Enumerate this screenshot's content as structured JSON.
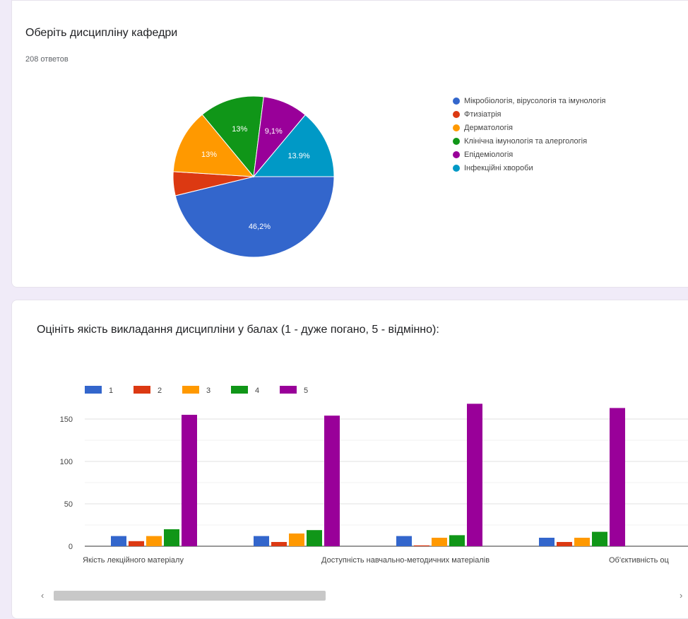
{
  "q1": {
    "title": "Оберіть дисципліну кафедри",
    "count": "208 ответов"
  },
  "q2": {
    "title": "Оцініть якість викладання дисципліни у балах (1 - дуже погано, 5 - відмінно):"
  },
  "scrollbar": {
    "left_arrow": "‹",
    "right_arrow": "›"
  },
  "chart_data": [
    {
      "type": "pie",
      "labels": [
        "Мікробіологія, вірусологія та імунологія",
        "Фтизіатрія",
        "Дерматологія",
        "Клінічна імунологія та алергологія",
        "Епідеміологія",
        "Інфекційні хвороби"
      ],
      "values": [
        46.2,
        4.8,
        13,
        13,
        9.1,
        13.9
      ],
      "slice_labels": [
        "46,2%",
        "",
        "13%",
        "13%",
        "9,1%",
        "13.9%"
      ],
      "colors": [
        "#3366cc",
        "#dc3912",
        "#ff9900",
        "#109618",
        "#990099",
        "#0099c6"
      ],
      "legend": "right"
    },
    {
      "type": "bar",
      "categories": [
        "Якість лекційного матеріалу",
        "Доступність навчально-методичних матеріалів",
        "Об'єктивність оц",
        ""
      ],
      "series": [
        {
          "name": "1",
          "color": "#3366cc",
          "values": [
            12,
            12,
            12,
            10
          ]
        },
        {
          "name": "2",
          "color": "#dc3912",
          "values": [
            6,
            5,
            1,
            5
          ]
        },
        {
          "name": "3",
          "color": "#ff9900",
          "values": [
            12,
            15,
            10,
            10
          ]
        },
        {
          "name": "4",
          "color": "#109618",
          "values": [
            20,
            19,
            13,
            17
          ]
        },
        {
          "name": "5",
          "color": "#990099",
          "values": [
            155,
            154,
            168,
            163
          ]
        }
      ],
      "yticks": [
        0,
        50,
        100,
        150
      ],
      "ylim": [
        0,
        175
      ],
      "grid": true,
      "legend": "top-left"
    }
  ]
}
